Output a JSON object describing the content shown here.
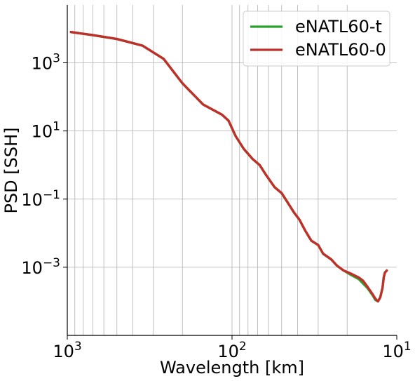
{
  "chart_data": {
    "type": "line",
    "title": "",
    "xlabel": "Wavelength [km]",
    "ylabel": "PSD [SSH]",
    "xscale": "log",
    "yscale": "log",
    "x_reversed": true,
    "xlim": [
      1000,
      10
    ],
    "ylim": [
      1e-05,
      50000
    ],
    "grid": true,
    "legend_position": "top-right",
    "x_ticks": [
      {
        "value": 1000,
        "base": "10",
        "exp": "3"
      },
      {
        "value": 100,
        "base": "10",
        "exp": "2"
      },
      {
        "value": 10,
        "base": "10",
        "exp": "1"
      }
    ],
    "y_ticks": [
      {
        "value": 0.001,
        "base": "10",
        "exp": "−3"
      },
      {
        "value": 0.1,
        "base": "10",
        "exp": "−1"
      },
      {
        "value": 10,
        "base": "10",
        "exp": "1"
      },
      {
        "value": 1000,
        "base": "10",
        "exp": "3"
      }
    ],
    "series": [
      {
        "name": "eNATL60-t",
        "color": "#2ca02c",
        "x": [
          950,
          700,
          500,
          350,
          260,
          200,
          150,
          115,
          105,
          95,
          85,
          75,
          68,
          62,
          55,
          50,
          46,
          42,
          39,
          36,
          33,
          30,
          28,
          25,
          23,
          21,
          19,
          17,
          16,
          15,
          14,
          13.5,
          13,
          12.6,
          12.2,
          12,
          11.8,
          11.5
        ],
        "y": [
          8000,
          6500,
          5000,
          3200,
          1300,
          250,
          60,
          30,
          20,
          7,
          3,
          1.5,
          1,
          0.5,
          0.22,
          0.15,
          0.08,
          0.04,
          0.025,
          0.012,
          0.006,
          0.0045,
          0.0025,
          0.0017,
          0.0011,
          0.0008,
          0.0006,
          0.00045,
          0.00033,
          0.00024,
          0.00015,
          0.00011,
          0.0001,
          0.00013,
          0.00025,
          0.0005,
          0.0007,
          0.0008
        ]
      },
      {
        "name": "eNATL60-0",
        "color": "#c0302a",
        "x": [
          950,
          700,
          500,
          350,
          260,
          200,
          150,
          115,
          105,
          95,
          85,
          75,
          68,
          62,
          55,
          50,
          46,
          42,
          39,
          36,
          33,
          30,
          28,
          25,
          23,
          21,
          19,
          17,
          16,
          15,
          14,
          13.5,
          13,
          12.6,
          12.2,
          12,
          11.8,
          11.5
        ],
        "y": [
          8000,
          6500,
          5000,
          3200,
          1300,
          250,
          60,
          30,
          20,
          7,
          3,
          1.5,
          1,
          0.5,
          0.22,
          0.15,
          0.08,
          0.04,
          0.025,
          0.012,
          0.006,
          0.0045,
          0.0025,
          0.0017,
          0.0011,
          0.0008,
          0.00065,
          0.0005,
          0.0004,
          0.00026,
          0.00016,
          0.00012,
          0.0001,
          0.00013,
          0.00025,
          0.0005,
          0.0007,
          0.0008
        ]
      }
    ]
  }
}
